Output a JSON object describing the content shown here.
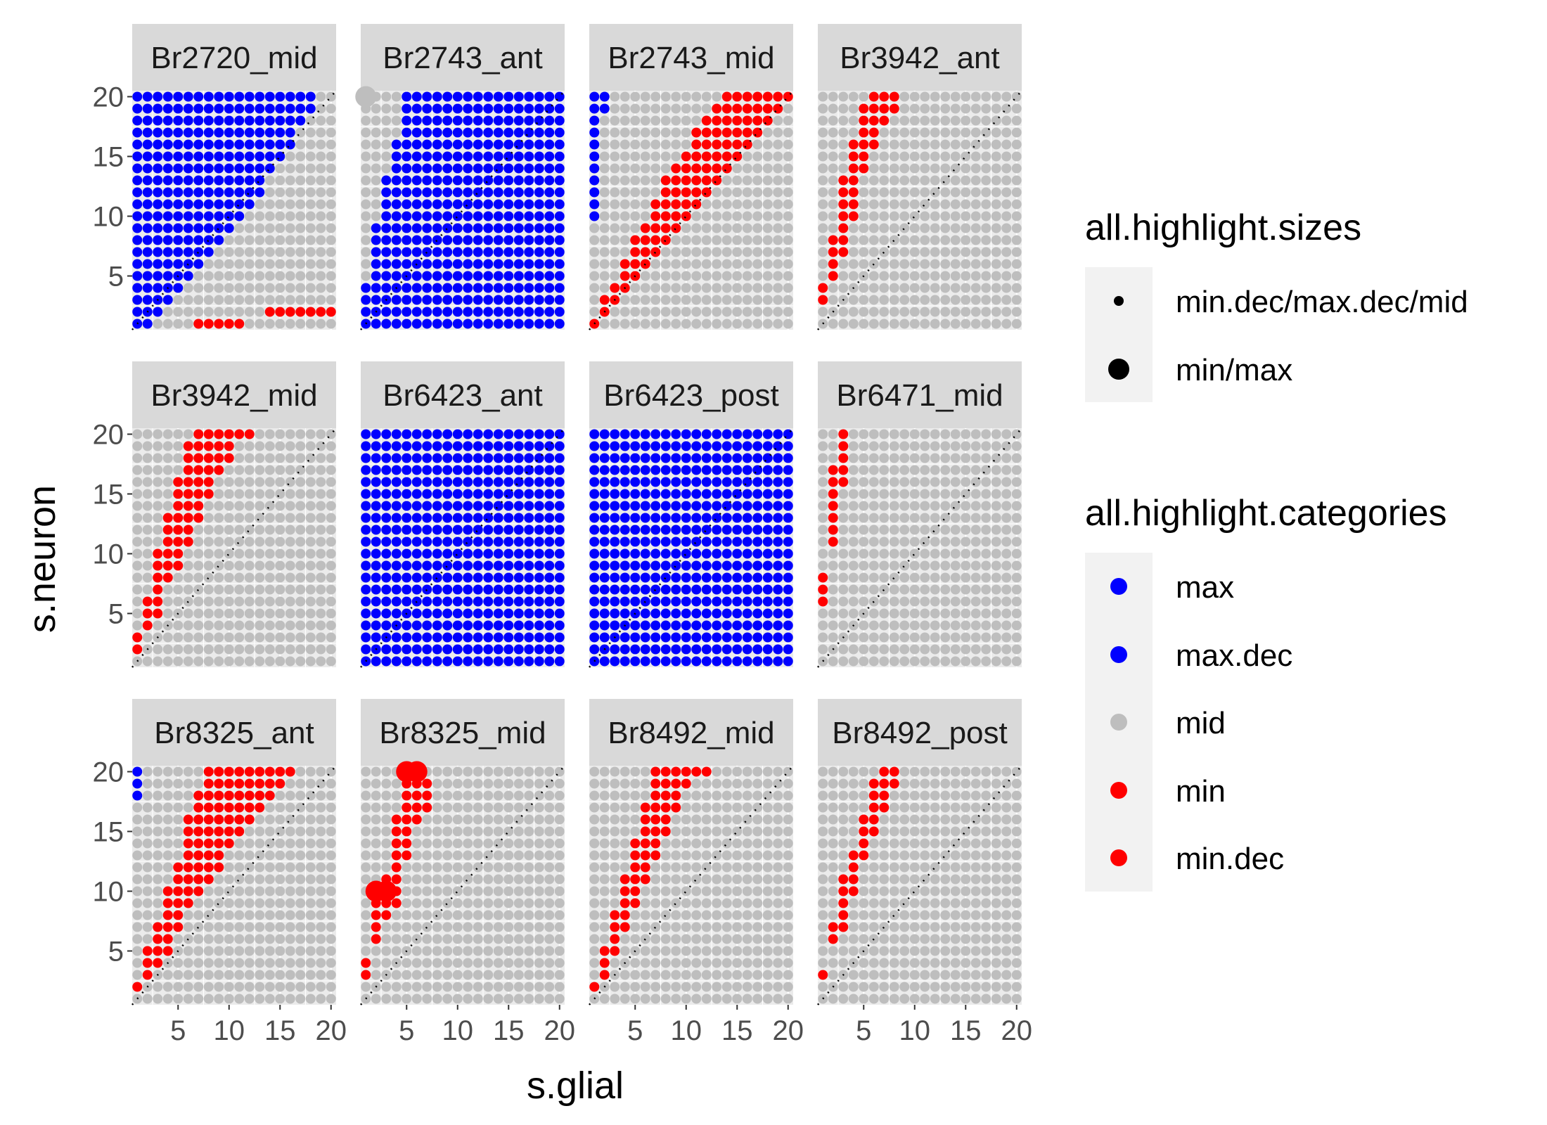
{
  "chart_data": {
    "type": "scatter",
    "facet_grid": {
      "rows": 3,
      "cols": 4
    },
    "xlabel": "s.glial",
    "ylabel": "s.neuron",
    "xlim": [
      0.5,
      20.5
    ],
    "ylim": [
      0.5,
      20.5
    ],
    "x_ticks": [
      5,
      10,
      15,
      20
    ],
    "y_ticks": [
      5,
      10,
      15,
      20
    ],
    "grid": true,
    "reference_line": "y = x (dotted)",
    "colors": {
      "max": "#0000FF",
      "max.dec": "#0000FF",
      "mid": "#BEBEBE",
      "min": "#FF0000",
      "min.dec": "#FF0000",
      "panel": "#EBEBEB",
      "strip": "#D9D9D9"
    },
    "legend": {
      "position": "right",
      "sizes": {
        "title": "all.highlight.sizes",
        "items": [
          "min.dec/max.dec/mid",
          "min/max"
        ]
      },
      "categories": {
        "title": "all.highlight.categories",
        "items": [
          "max",
          "max.dec",
          "mid",
          "min",
          "min.dec"
        ]
      }
    },
    "panels": [
      {
        "title": "Br2720_mid",
        "blue_ranges": [
          [
            1,
            1,
            2
          ],
          [
            2,
            1,
            3
          ],
          [
            3,
            1,
            4
          ],
          [
            4,
            1,
            5
          ],
          [
            5,
            1,
            6
          ],
          [
            6,
            1,
            7
          ],
          [
            7,
            1,
            8
          ],
          [
            8,
            1,
            9
          ],
          [
            9,
            1,
            10
          ],
          [
            10,
            1,
            11
          ],
          [
            11,
            1,
            12
          ],
          [
            12,
            1,
            13
          ],
          [
            13,
            1,
            13
          ],
          [
            14,
            1,
            14
          ],
          [
            15,
            1,
            15
          ],
          [
            16,
            1,
            16
          ],
          [
            17,
            1,
            16
          ],
          [
            18,
            1,
            17
          ],
          [
            19,
            1,
            18
          ],
          [
            20,
            1,
            18
          ]
        ],
        "red_ranges": [
          [
            1,
            7,
            11
          ],
          [
            2,
            14,
            20
          ]
        ],
        "big": []
      },
      {
        "title": "Br2743_ant",
        "blue_ranges": [
          [
            1,
            1,
            20
          ],
          [
            2,
            1,
            20
          ],
          [
            3,
            1,
            20
          ],
          [
            4,
            1,
            20
          ],
          [
            5,
            2,
            20
          ],
          [
            6,
            2,
            20
          ],
          [
            7,
            2,
            20
          ],
          [
            8,
            2,
            20
          ],
          [
            9,
            2,
            20
          ],
          [
            10,
            3,
            20
          ],
          [
            11,
            3,
            20
          ],
          [
            12,
            3,
            20
          ],
          [
            13,
            3,
            20
          ],
          [
            14,
            4,
            20
          ],
          [
            15,
            4,
            20
          ],
          [
            16,
            4,
            20
          ],
          [
            17,
            5,
            20
          ],
          [
            18,
            5,
            20
          ],
          [
            19,
            5,
            20
          ],
          [
            20,
            5,
            20
          ]
        ],
        "red_ranges": [],
        "big": [
          [
            20,
            1,
            "blue"
          ]
        ]
      },
      {
        "title": "Br2743_mid",
        "blue_ranges": [
          [
            10,
            1,
            1
          ],
          [
            11,
            1,
            1
          ],
          [
            12,
            1,
            1
          ],
          [
            13,
            1,
            1
          ],
          [
            14,
            1,
            1
          ],
          [
            15,
            1,
            1
          ],
          [
            16,
            1,
            1
          ],
          [
            17,
            1,
            1
          ],
          [
            18,
            1,
            1
          ],
          [
            19,
            1,
            2
          ],
          [
            20,
            1,
            2
          ]
        ],
        "red_ranges": [
          [
            1,
            1,
            1
          ],
          [
            2,
            2,
            2
          ],
          [
            3,
            2,
            3
          ],
          [
            4,
            3,
            4
          ],
          [
            5,
            4,
            5
          ],
          [
            6,
            4,
            6
          ],
          [
            7,
            5,
            7
          ],
          [
            8,
            5,
            8
          ],
          [
            9,
            6,
            9
          ],
          [
            10,
            7,
            10
          ],
          [
            11,
            7,
            11
          ],
          [
            12,
            8,
            12
          ],
          [
            13,
            8,
            13
          ],
          [
            14,
            9,
            14
          ],
          [
            15,
            10,
            15
          ],
          [
            16,
            11,
            16
          ],
          [
            17,
            11,
            17
          ],
          [
            18,
            12,
            18
          ],
          [
            19,
            13,
            19
          ],
          [
            20,
            14,
            20
          ]
        ],
        "big": []
      },
      {
        "title": "Br3942_ant",
        "blue_ranges": [],
        "red_ranges": [
          [
            3,
            1,
            1
          ],
          [
            4,
            1,
            1
          ],
          [
            5,
            2,
            2
          ],
          [
            6,
            2,
            2
          ],
          [
            7,
            2,
            3
          ],
          [
            8,
            2,
            3
          ],
          [
            9,
            3,
            3
          ],
          [
            10,
            3,
            4
          ],
          [
            11,
            3,
            4
          ],
          [
            12,
            3,
            4
          ],
          [
            13,
            3,
            4
          ],
          [
            14,
            4,
            5
          ],
          [
            15,
            4,
            5
          ],
          [
            16,
            4,
            6
          ],
          [
            17,
            5,
            6
          ],
          [
            18,
            5,
            7
          ],
          [
            19,
            5,
            8
          ],
          [
            20,
            6,
            8
          ]
        ],
        "big": []
      },
      {
        "title": "Br3942_mid",
        "blue_ranges": [],
        "red_ranges": [
          [
            2,
            1,
            1
          ],
          [
            3,
            1,
            1
          ],
          [
            4,
            2,
            2
          ],
          [
            5,
            2,
            3
          ],
          [
            6,
            2,
            3
          ],
          [
            7,
            3,
            3
          ],
          [
            8,
            3,
            4
          ],
          [
            9,
            3,
            5
          ],
          [
            10,
            3,
            5
          ],
          [
            11,
            4,
            6
          ],
          [
            12,
            4,
            6
          ],
          [
            13,
            4,
            7
          ],
          [
            14,
            5,
            7
          ],
          [
            15,
            5,
            8
          ],
          [
            16,
            5,
            8
          ],
          [
            17,
            6,
            9
          ],
          [
            18,
            6,
            10
          ],
          [
            19,
            6,
            10
          ],
          [
            20,
            7,
            12
          ]
        ],
        "big": []
      },
      {
        "title": "Br6423_ant",
        "blue_ranges": [
          [
            1,
            1,
            20
          ],
          [
            2,
            1,
            20
          ],
          [
            3,
            1,
            20
          ],
          [
            4,
            1,
            20
          ],
          [
            5,
            1,
            20
          ],
          [
            6,
            1,
            20
          ],
          [
            7,
            1,
            20
          ],
          [
            8,
            1,
            20
          ],
          [
            9,
            1,
            20
          ],
          [
            10,
            1,
            20
          ],
          [
            11,
            1,
            20
          ],
          [
            12,
            1,
            20
          ],
          [
            13,
            1,
            20
          ],
          [
            14,
            1,
            20
          ],
          [
            15,
            1,
            20
          ],
          [
            16,
            1,
            20
          ],
          [
            17,
            1,
            20
          ],
          [
            18,
            1,
            20
          ],
          [
            19,
            1,
            20
          ],
          [
            20,
            1,
            20
          ]
        ],
        "red_ranges": [],
        "big": []
      },
      {
        "title": "Br6423_post",
        "blue_ranges": [
          [
            1,
            1,
            20
          ],
          [
            2,
            1,
            20
          ],
          [
            3,
            1,
            20
          ],
          [
            4,
            1,
            20
          ],
          [
            5,
            1,
            20
          ],
          [
            6,
            1,
            20
          ],
          [
            7,
            1,
            20
          ],
          [
            8,
            1,
            20
          ],
          [
            9,
            1,
            20
          ],
          [
            10,
            1,
            20
          ],
          [
            11,
            1,
            20
          ],
          [
            12,
            1,
            20
          ],
          [
            13,
            1,
            20
          ],
          [
            14,
            1,
            20
          ],
          [
            15,
            1,
            20
          ],
          [
            16,
            1,
            20
          ],
          [
            17,
            1,
            20
          ],
          [
            18,
            1,
            20
          ],
          [
            19,
            1,
            20
          ],
          [
            20,
            1,
            20
          ]
        ],
        "red_ranges": [],
        "big": []
      },
      {
        "title": "Br6471_mid",
        "blue_ranges": [],
        "red_ranges": [
          [
            6,
            1,
            1
          ],
          [
            7,
            1,
            1
          ],
          [
            8,
            1,
            1
          ],
          [
            11,
            2,
            2
          ],
          [
            12,
            2,
            2
          ],
          [
            13,
            2,
            2
          ],
          [
            14,
            2,
            2
          ],
          [
            15,
            2,
            2
          ],
          [
            16,
            2,
            3
          ],
          [
            17,
            2,
            3
          ],
          [
            18,
            3,
            3
          ],
          [
            19,
            3,
            3
          ],
          [
            20,
            3,
            3
          ]
        ],
        "big": []
      },
      {
        "title": "Br8325_ant",
        "blue_ranges": [
          [
            18,
            1,
            1
          ],
          [
            19,
            1,
            1
          ],
          [
            20,
            1,
            1
          ]
        ],
        "red_ranges": [
          [
            2,
            1,
            1
          ],
          [
            3,
            2,
            2
          ],
          [
            4,
            2,
            3
          ],
          [
            5,
            2,
            4
          ],
          [
            6,
            3,
            4
          ],
          [
            7,
            3,
            5
          ],
          [
            8,
            4,
            5
          ],
          [
            9,
            4,
            6
          ],
          [
            10,
            4,
            7
          ],
          [
            11,
            5,
            8
          ],
          [
            12,
            5,
            9
          ],
          [
            13,
            6,
            9
          ],
          [
            14,
            6,
            10
          ],
          [
            15,
            6,
            11
          ],
          [
            16,
            6,
            12
          ],
          [
            17,
            7,
            13
          ],
          [
            18,
            7,
            14
          ],
          [
            19,
            8,
            15
          ],
          [
            20,
            8,
            16
          ]
        ],
        "big": []
      },
      {
        "title": "Br8325_mid",
        "blue_ranges": [],
        "red_ranges": [
          [
            3,
            1,
            1
          ],
          [
            4,
            1,
            1
          ],
          [
            6,
            2,
            2
          ],
          [
            7,
            2,
            2
          ],
          [
            8,
            2,
            3
          ],
          [
            9,
            2,
            4
          ],
          [
            10,
            2,
            4
          ],
          [
            11,
            3,
            4
          ],
          [
            12,
            4,
            4
          ],
          [
            13,
            4,
            5
          ],
          [
            14,
            4,
            5
          ],
          [
            15,
            4,
            5
          ],
          [
            16,
            4,
            6
          ],
          [
            17,
            5,
            7
          ],
          [
            18,
            5,
            7
          ],
          [
            19,
            5,
            7
          ],
          [
            20,
            5,
            6
          ]
        ],
        "big": [
          [
            10,
            2,
            "red"
          ],
          [
            10,
            3,
            "red"
          ],
          [
            20,
            5,
            "red"
          ],
          [
            20,
            6,
            "red"
          ]
        ]
      },
      {
        "title": "Br8492_mid",
        "blue_ranges": [],
        "red_ranges": [
          [
            2,
            1,
            1
          ],
          [
            3,
            2,
            2
          ],
          [
            4,
            2,
            2
          ],
          [
            5,
            2,
            3
          ],
          [
            6,
            3,
            3
          ],
          [
            7,
            3,
            4
          ],
          [
            8,
            3,
            4
          ],
          [
            9,
            4,
            5
          ],
          [
            10,
            4,
            5
          ],
          [
            11,
            4,
            6
          ],
          [
            12,
            5,
            6
          ],
          [
            13,
            5,
            7
          ],
          [
            14,
            5,
            7
          ],
          [
            15,
            6,
            8
          ],
          [
            16,
            6,
            8
          ],
          [
            17,
            6,
            9
          ],
          [
            18,
            7,
            9
          ],
          [
            19,
            7,
            10
          ],
          [
            20,
            7,
            12
          ]
        ],
        "big": []
      },
      {
        "title": "Br8492_post",
        "blue_ranges": [],
        "red_ranges": [
          [
            3,
            1,
            1
          ],
          [
            6,
            2,
            2
          ],
          [
            7,
            2,
            3
          ],
          [
            8,
            3,
            3
          ],
          [
            9,
            3,
            3
          ],
          [
            10,
            3,
            4
          ],
          [
            11,
            3,
            4
          ],
          [
            12,
            4,
            4
          ],
          [
            13,
            4,
            5
          ],
          [
            14,
            5,
            5
          ],
          [
            15,
            5,
            6
          ],
          [
            16,
            5,
            6
          ],
          [
            17,
            6,
            7
          ],
          [
            18,
            6,
            7
          ],
          [
            19,
            6,
            8
          ],
          [
            20,
            7,
            8
          ]
        ],
        "big": []
      }
    ]
  }
}
